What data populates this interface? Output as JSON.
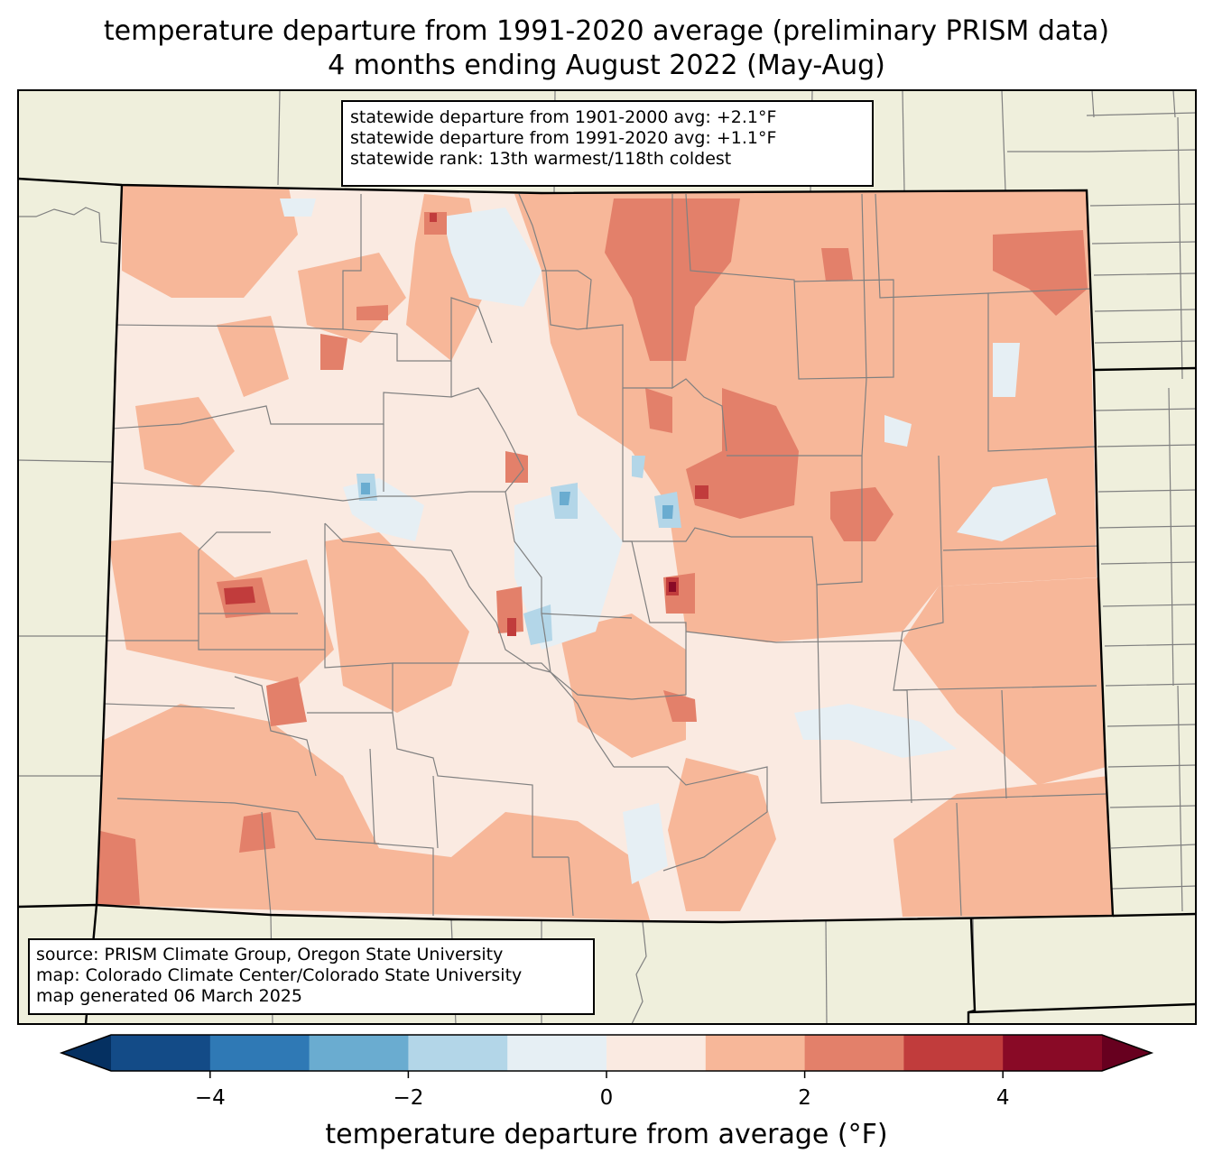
{
  "title": {
    "line1": "temperature departure from 1991-2020 average (preliminary PRISM data)",
    "line2": "4 months ending August 2022 (May-Aug)"
  },
  "stats": {
    "line1": "statewide departure from 1901-2000 avg: +2.1°F",
    "line2": "statewide departure from 1991-2020 avg: +1.1°F",
    "line3": "statewide rank: 13th warmest/118th coldest"
  },
  "source": {
    "line1": "source: PRISM Climate Group, Oregon State University",
    "line2": "map: Colorado Climate Center/Colorado State University",
    "line3": "map generated 06 March 2025"
  },
  "colorbar": {
    "label": "temperature departure from average (°F)",
    "ticks": [
      "−4",
      "−2",
      "0",
      "2",
      "4"
    ],
    "bins": [
      {
        "from": -5,
        "to": -4,
        "color": "#134b87"
      },
      {
        "from": -4,
        "to": -3,
        "color": "#2f79b5"
      },
      {
        "from": -3,
        "to": -2,
        "color": "#6aacd0"
      },
      {
        "from": -2,
        "to": -1,
        "color": "#b3d6e8"
      },
      {
        "from": -1,
        "to": 0,
        "color": "#e6eff4"
      },
      {
        "from": 0,
        "to": 1,
        "color": "#faeae1"
      },
      {
        "from": 1,
        "to": 2,
        "color": "#f7b799"
      },
      {
        "from": 2,
        "to": 3,
        "color": "#e3806a"
      },
      {
        "from": 3,
        "to": 4,
        "color": "#c13c3c"
      },
      {
        "from": 4,
        "to": 5,
        "color": "#890a26"
      }
    ],
    "under_color": "#053061",
    "over_color": "#67001f"
  },
  "colors": {
    "land": "#efefdc",
    "state_border": "#000000",
    "county_border": "#808080"
  }
}
